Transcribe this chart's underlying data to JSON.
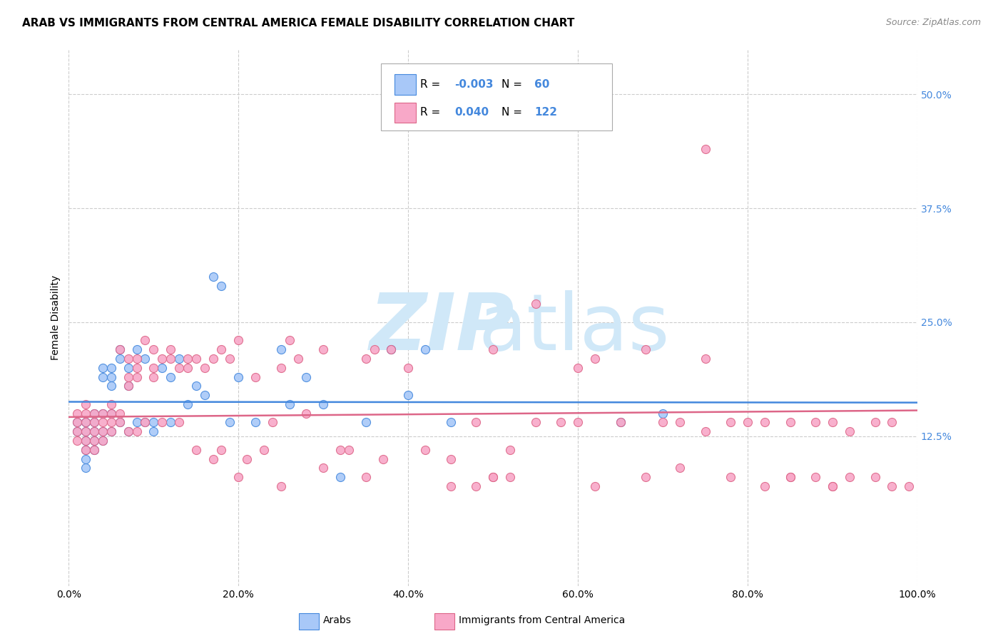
{
  "title": "ARAB VS IMMIGRANTS FROM CENTRAL AMERICA FEMALE DISABILITY CORRELATION CHART",
  "source": "Source: ZipAtlas.com",
  "ylabel": "Female Disability",
  "ytick_labels": [
    "12.5%",
    "25.0%",
    "37.5%",
    "50.0%"
  ],
  "ytick_values": [
    0.125,
    0.25,
    0.375,
    0.5
  ],
  "xlim": [
    0.0,
    1.0
  ],
  "ylim": [
    -0.04,
    0.55
  ],
  "legend_r_arab": "-0.003",
  "legend_n_arab": "60",
  "legend_r_immig": "0.040",
  "legend_n_immig": "122",
  "color_arab": "#a8c8f8",
  "color_immig": "#f8a8c8",
  "color_arab_line": "#4488dd",
  "color_immig_line": "#dd6688",
  "watermark_color": "#d0e8f8",
  "background_color": "#ffffff",
  "grid_color": "#cccccc",
  "arab_x": [
    0.01,
    0.01,
    0.02,
    0.02,
    0.02,
    0.02,
    0.02,
    0.02,
    0.02,
    0.03,
    0.03,
    0.03,
    0.03,
    0.03,
    0.04,
    0.04,
    0.04,
    0.04,
    0.04,
    0.05,
    0.05,
    0.05,
    0.05,
    0.05,
    0.06,
    0.06,
    0.06,
    0.07,
    0.07,
    0.07,
    0.08,
    0.08,
    0.09,
    0.09,
    0.1,
    0.1,
    0.11,
    0.12,
    0.12,
    0.13,
    0.14,
    0.15,
    0.16,
    0.17,
    0.18,
    0.19,
    0.2,
    0.22,
    0.25,
    0.26,
    0.28,
    0.3,
    0.32,
    0.35,
    0.38,
    0.4,
    0.42,
    0.45,
    0.65,
    0.7
  ],
  "arab_y": [
    0.13,
    0.14,
    0.14,
    0.13,
    0.12,
    0.11,
    0.1,
    0.09,
    0.14,
    0.15,
    0.14,
    0.13,
    0.12,
    0.11,
    0.2,
    0.19,
    0.15,
    0.13,
    0.12,
    0.2,
    0.19,
    0.18,
    0.15,
    0.13,
    0.22,
    0.21,
    0.14,
    0.2,
    0.18,
    0.13,
    0.22,
    0.14,
    0.21,
    0.14,
    0.14,
    0.13,
    0.2,
    0.19,
    0.14,
    0.21,
    0.16,
    0.18,
    0.17,
    0.3,
    0.29,
    0.14,
    0.19,
    0.14,
    0.22,
    0.16,
    0.19,
    0.16,
    0.08,
    0.14,
    0.22,
    0.17,
    0.22,
    0.14,
    0.14,
    0.15
  ],
  "immig_x": [
    0.01,
    0.01,
    0.01,
    0.01,
    0.02,
    0.02,
    0.02,
    0.02,
    0.02,
    0.02,
    0.03,
    0.03,
    0.03,
    0.03,
    0.03,
    0.04,
    0.04,
    0.04,
    0.04,
    0.05,
    0.05,
    0.05,
    0.05,
    0.06,
    0.06,
    0.06,
    0.07,
    0.07,
    0.07,
    0.07,
    0.08,
    0.08,
    0.08,
    0.08,
    0.09,
    0.09,
    0.1,
    0.1,
    0.1,
    0.11,
    0.11,
    0.12,
    0.12,
    0.13,
    0.13,
    0.14,
    0.14,
    0.15,
    0.15,
    0.16,
    0.17,
    0.17,
    0.18,
    0.18,
    0.19,
    0.2,
    0.21,
    0.22,
    0.23,
    0.24,
    0.25,
    0.26,
    0.27,
    0.28,
    0.3,
    0.32,
    0.33,
    0.35,
    0.36,
    0.37,
    0.38,
    0.4,
    0.42,
    0.45,
    0.48,
    0.5,
    0.52,
    0.55,
    0.58,
    0.6,
    0.62,
    0.65,
    0.7,
    0.72,
    0.75,
    0.78,
    0.8,
    0.82,
    0.85,
    0.88,
    0.9,
    0.92,
    0.95,
    0.97,
    0.75,
    0.55,
    0.35,
    0.3,
    0.25,
    0.2,
    0.45,
    0.48,
    0.5,
    0.52,
    0.62,
    0.68,
    0.72,
    0.78,
    0.82,
    0.85,
    0.88,
    0.9,
    0.92,
    0.95,
    0.97,
    0.99,
    0.85,
    0.9,
    0.75,
    0.68,
    0.6,
    0.5
  ],
  "immig_y": [
    0.14,
    0.13,
    0.15,
    0.12,
    0.15,
    0.13,
    0.12,
    0.14,
    0.11,
    0.16,
    0.14,
    0.15,
    0.13,
    0.12,
    0.11,
    0.15,
    0.13,
    0.14,
    0.12,
    0.15,
    0.13,
    0.14,
    0.16,
    0.15,
    0.22,
    0.14,
    0.21,
    0.19,
    0.18,
    0.13,
    0.21,
    0.2,
    0.19,
    0.13,
    0.23,
    0.14,
    0.22,
    0.2,
    0.19,
    0.21,
    0.14,
    0.22,
    0.21,
    0.2,
    0.14,
    0.21,
    0.2,
    0.11,
    0.21,
    0.2,
    0.1,
    0.21,
    0.22,
    0.11,
    0.21,
    0.23,
    0.1,
    0.19,
    0.11,
    0.14,
    0.2,
    0.23,
    0.21,
    0.15,
    0.22,
    0.11,
    0.11,
    0.21,
    0.22,
    0.1,
    0.22,
    0.2,
    0.11,
    0.1,
    0.14,
    0.22,
    0.11,
    0.14,
    0.14,
    0.14,
    0.21,
    0.14,
    0.14,
    0.14,
    0.13,
    0.14,
    0.14,
    0.14,
    0.14,
    0.14,
    0.14,
    0.13,
    0.14,
    0.14,
    0.44,
    0.27,
    0.08,
    0.09,
    0.07,
    0.08,
    0.07,
    0.07,
    0.08,
    0.08,
    0.07,
    0.08,
    0.09,
    0.08,
    0.07,
    0.08,
    0.08,
    0.07,
    0.08,
    0.08,
    0.07,
    0.07,
    0.08,
    0.07,
    0.21,
    0.22,
    0.2,
    0.08
  ]
}
